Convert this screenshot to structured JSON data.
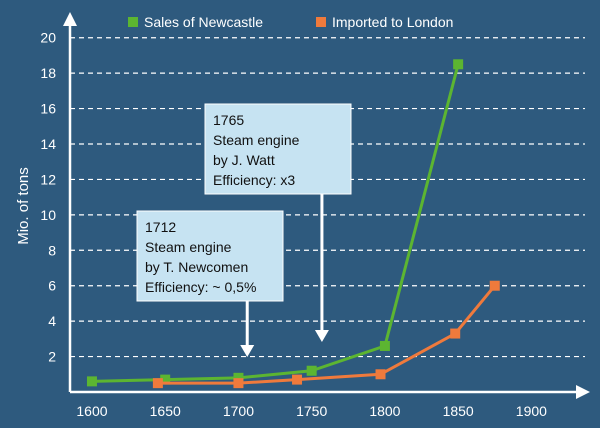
{
  "chart_data": {
    "type": "line",
    "ylabel": "Mio. of tons",
    "xlim": [
      1585,
      1925
    ],
    "ylim": [
      0,
      21
    ],
    "x_ticks": [
      1600,
      1650,
      1700,
      1750,
      1800,
      1850,
      1900
    ],
    "y_ticks": [
      2,
      4,
      6,
      8,
      10,
      12,
      14,
      16,
      18,
      20
    ],
    "grid": "horizontal dashed",
    "legend_position": "top",
    "series": [
      {
        "name": "Sales of Newcastle",
        "color": "#5cb531",
        "points": [
          [
            1600,
            0.6
          ],
          [
            1650,
            0.7
          ],
          [
            1700,
            0.8
          ],
          [
            1750,
            1.2
          ],
          [
            1800,
            2.6
          ],
          [
            1850,
            18.5
          ]
        ]
      },
      {
        "name": "Imported to London",
        "color": "#ef7a3c",
        "points": [
          [
            1645,
            0.5
          ],
          [
            1700,
            0.5
          ],
          [
            1740,
            0.7
          ],
          [
            1797,
            1.0
          ],
          [
            1848,
            3.3
          ],
          [
            1875,
            6.0
          ]
        ]
      }
    ],
    "annotations": [
      {
        "lines": [
          "1765",
          "Steam engine",
          "by J. Watt",
          "Efficiency: x3"
        ],
        "arrow_x": 1757
      },
      {
        "lines": [
          "1712",
          "Steam engine",
          "by T. Newcomen",
          "Efficiency: ~ 0,5%"
        ],
        "arrow_x": 1706
      }
    ]
  }
}
